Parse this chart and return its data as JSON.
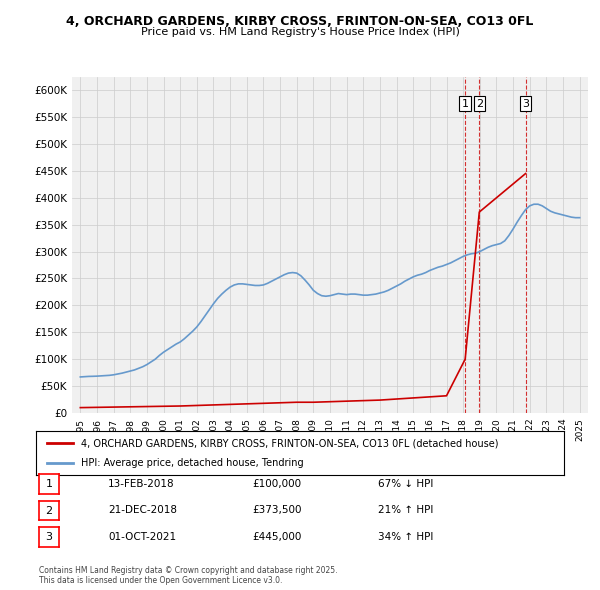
{
  "title1": "4, ORCHARD GARDENS, KIRBY CROSS, FRINTON-ON-SEA, CO13 0FL",
  "title2": "Price paid vs. HM Land Registry's House Price Index (HPI)",
  "legend_house": "4, ORCHARD GARDENS, KIRBY CROSS, FRINTON-ON-SEA, CO13 0FL (detached house)",
  "legend_hpi": "HPI: Average price, detached house, Tendring",
  "footer": "Contains HM Land Registry data © Crown copyright and database right 2025.\nThis data is licensed under the Open Government Licence v3.0.",
  "house_color": "#cc0000",
  "hpi_color": "#6699cc",
  "transactions": [
    {
      "num": 1,
      "date": "13-FEB-2018",
      "price": 100000,
      "pct": "67% ↓ HPI",
      "x": 2018.12
    },
    {
      "num": 2,
      "date": "21-DEC-2018",
      "price": 373500,
      "pct": "21% ↑ HPI",
      "x": 2018.97
    },
    {
      "num": 3,
      "date": "01-OCT-2021",
      "price": 445000,
      "pct": "34% ↑ HPI",
      "x": 2021.75
    }
  ],
  "vline_color": "#cc0000",
  "vline_style": "--",
  "ylim": [
    0,
    625000
  ],
  "xlim_start": 1994.5,
  "xlim_end": 2025.5,
  "yticks": [
    0,
    50000,
    100000,
    150000,
    200000,
    250000,
    300000,
    350000,
    400000,
    450000,
    500000,
    550000,
    600000
  ],
  "ytick_labels": [
    "£0",
    "£50K",
    "£100K",
    "£150K",
    "£200K",
    "£250K",
    "£300K",
    "£350K",
    "£400K",
    "£450K",
    "£500K",
    "£550K",
    "£600K"
  ],
  "xticks": [
    1995,
    1996,
    1997,
    1998,
    1999,
    2000,
    2001,
    2002,
    2003,
    2004,
    2005,
    2006,
    2007,
    2008,
    2009,
    2010,
    2011,
    2012,
    2013,
    2014,
    2015,
    2016,
    2017,
    2018,
    2019,
    2020,
    2021,
    2022,
    2023,
    2024,
    2025
  ],
  "hpi_data_x": [
    1995.0,
    1995.25,
    1995.5,
    1995.75,
    1996.0,
    1996.25,
    1996.5,
    1996.75,
    1997.0,
    1997.25,
    1997.5,
    1997.75,
    1998.0,
    1998.25,
    1998.5,
    1998.75,
    1999.0,
    1999.25,
    1999.5,
    1999.75,
    2000.0,
    2000.25,
    2000.5,
    2000.75,
    2001.0,
    2001.25,
    2001.5,
    2001.75,
    2002.0,
    2002.25,
    2002.5,
    2002.75,
    2003.0,
    2003.25,
    2003.5,
    2003.75,
    2004.0,
    2004.25,
    2004.5,
    2004.75,
    2005.0,
    2005.25,
    2005.5,
    2005.75,
    2006.0,
    2006.25,
    2006.5,
    2006.75,
    2007.0,
    2007.25,
    2007.5,
    2007.75,
    2008.0,
    2008.25,
    2008.5,
    2008.75,
    2009.0,
    2009.25,
    2009.5,
    2009.75,
    2010.0,
    2010.25,
    2010.5,
    2010.75,
    2011.0,
    2011.25,
    2011.5,
    2011.75,
    2012.0,
    2012.25,
    2012.5,
    2012.75,
    2013.0,
    2013.25,
    2013.5,
    2013.75,
    2014.0,
    2014.25,
    2014.5,
    2014.75,
    2015.0,
    2015.25,
    2015.5,
    2015.75,
    2016.0,
    2016.25,
    2016.5,
    2016.75,
    2017.0,
    2017.25,
    2017.5,
    2017.75,
    2018.0,
    2018.25,
    2018.5,
    2018.75,
    2019.0,
    2019.25,
    2019.5,
    2019.75,
    2020.0,
    2020.25,
    2020.5,
    2020.75,
    2021.0,
    2021.25,
    2021.5,
    2021.75,
    2022.0,
    2022.25,
    2022.5,
    2022.75,
    2023.0,
    2023.25,
    2023.5,
    2023.75,
    2024.0,
    2024.25,
    2024.5,
    2024.75,
    2025.0
  ],
  "hpi_data_y": [
    67000,
    67500,
    68000,
    68200,
    68500,
    69000,
    69500,
    70000,
    71000,
    72500,
    74000,
    76000,
    78000,
    80000,
    83000,
    86000,
    90000,
    95000,
    100000,
    107000,
    113000,
    118000,
    123000,
    128000,
    132000,
    138000,
    145000,
    152000,
    160000,
    170000,
    181000,
    192000,
    203000,
    213000,
    221000,
    228000,
    234000,
    238000,
    240000,
    240000,
    239000,
    238000,
    237000,
    237000,
    238000,
    241000,
    245000,
    249000,
    253000,
    257000,
    260000,
    261000,
    260000,
    255000,
    247000,
    238000,
    228000,
    222000,
    218000,
    217000,
    218000,
    220000,
    222000,
    221000,
    220000,
    221000,
    221000,
    220000,
    219000,
    219000,
    220000,
    221000,
    223000,
    225000,
    228000,
    232000,
    236000,
    240000,
    245000,
    249000,
    253000,
    256000,
    258000,
    261000,
    265000,
    268000,
    271000,
    273000,
    276000,
    279000,
    283000,
    287000,
    291000,
    294000,
    296000,
    297000,
    300000,
    304000,
    308000,
    311000,
    313000,
    315000,
    320000,
    330000,
    342000,
    355000,
    367000,
    378000,
    385000,
    388000,
    388000,
    385000,
    380000,
    375000,
    372000,
    370000,
    368000,
    366000,
    364000,
    363000,
    363000
  ],
  "house_data_x": [
    1995.0,
    1996.0,
    1997.0,
    1998.0,
    1999.0,
    2000.0,
    2001.0,
    2002.0,
    2003.0,
    2004.0,
    2005.0,
    2006.0,
    2007.0,
    2008.0,
    2009.0,
    2010.0,
    2011.0,
    2012.0,
    2013.0,
    2014.0,
    2015.0,
    2016.0,
    2017.0,
    2018.12,
    2018.97,
    2021.75
  ],
  "house_data_y": [
    10000,
    10500,
    11000,
    11500,
    12000,
    12500,
    13000,
    14000,
    15000,
    16000,
    17000,
    18000,
    19000,
    20000,
    20000,
    21000,
    22000,
    23000,
    24000,
    26000,
    28000,
    30000,
    32000,
    100000,
    373500,
    445000
  ],
  "bg_color": "#ffffff",
  "grid_color": "#cccccc",
  "plot_bg_color": "#f0f0f0"
}
